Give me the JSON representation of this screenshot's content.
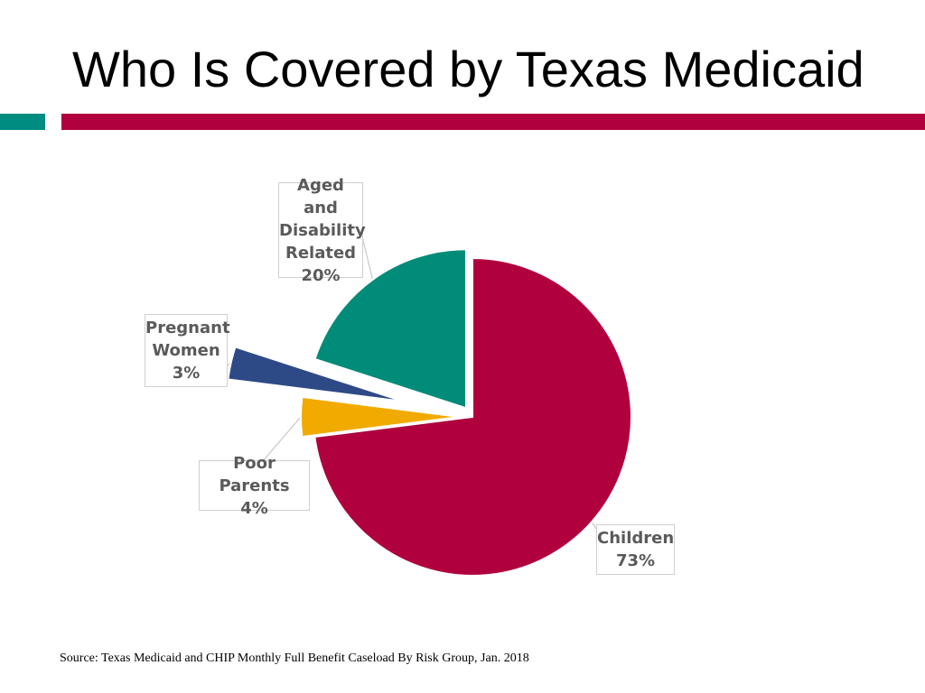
{
  "slide": {
    "title": "Who Is Covered by Texas Medicaid",
    "source": "Source: Texas Medicaid and CHIP Monthly Full Benefit Caseload By Risk Group, Jan. 2018"
  },
  "colors": {
    "accent_left": "#008c80",
    "accent_right": "#b0003e",
    "leader": "#c8c8c8"
  },
  "chart_data": {
    "type": "pie",
    "title": "",
    "slices": [
      {
        "key": "children",
        "lines": [
          "Children"
        ],
        "pct_label": "73%",
        "value": 73,
        "color": "#b0003e",
        "exploded": false
      },
      {
        "key": "poor-parents",
        "lines": [
          "Poor Parents"
        ],
        "pct_label": "4%",
        "value": 4,
        "color": "#f0aa00",
        "exploded": true
      },
      {
        "key": "pregnant-women",
        "lines": [
          "Pregnant",
          "Women"
        ],
        "pct_label": "3%",
        "value": 3,
        "color": "#2d4a86",
        "exploded": true
      },
      {
        "key": "aged-disability",
        "lines": [
          "Aged and",
          "Disability",
          "Related"
        ],
        "pct_label": "20%",
        "value": 20,
        "color": "#008c78",
        "exploded": true
      }
    ]
  }
}
